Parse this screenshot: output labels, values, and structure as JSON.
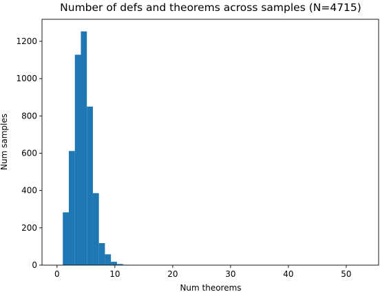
{
  "chart_data": {
    "type": "bar",
    "title": "Number of defs and theorems across samples (N=4715)",
    "xlabel": "Num theorems",
    "ylabel": "Num samples",
    "xlim": [
      -2.6,
      55.6
    ],
    "ylim": [
      0,
      1318
    ],
    "xticks": [
      0,
      10,
      20,
      30,
      40,
      50
    ],
    "yticks": [
      0,
      200,
      400,
      600,
      800,
      1000,
      1200
    ],
    "bar_color": "#1f77b4",
    "bin_width": 1.04,
    "bins": [
      {
        "x0": 1.0,
        "x1": 2.04,
        "value": 283
      },
      {
        "x0": 2.04,
        "x1": 3.08,
        "value": 612
      },
      {
        "x0": 3.08,
        "x1": 4.12,
        "value": 1128
      },
      {
        "x0": 4.12,
        "x1": 5.16,
        "value": 1253
      },
      {
        "x0": 5.16,
        "x1": 6.2,
        "value": 850
      },
      {
        "x0": 6.2,
        "x1": 7.24,
        "value": 386
      },
      {
        "x0": 7.24,
        "x1": 8.28,
        "value": 118
      },
      {
        "x0": 8.28,
        "x1": 9.32,
        "value": 58
      },
      {
        "x0": 9.32,
        "x1": 10.36,
        "value": 18
      },
      {
        "x0": 10.36,
        "x1": 11.4,
        "value": 6
      },
      {
        "x0": 11.4,
        "x1": 12.44,
        "value": 2
      },
      {
        "x0": 12.44,
        "x1": 13.48,
        "value": 1
      }
    ],
    "grid": false,
    "legend": "none"
  }
}
